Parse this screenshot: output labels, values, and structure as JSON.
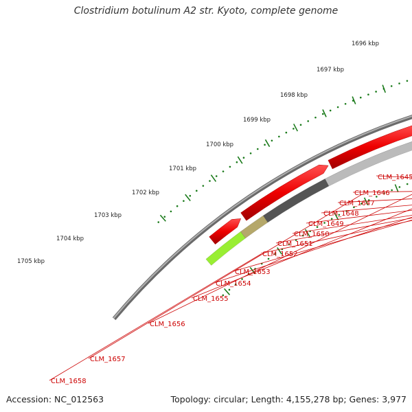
{
  "title": "Clostridium botulinum A2 str. Kyoto, complete genome",
  "footer": {
    "accession": "Accession: NC_012563",
    "topology": "Topology: circular; Length: 4,155,278 bp; Genes: 3,977"
  },
  "scale_labels": [
    "1696 kbp",
    "1697 kbp",
    "1698 kbp",
    "1699 kbp",
    "1700 kbp",
    "1701 kbp",
    "1702 kbp",
    "1703 kbp",
    "1704 kbp",
    "1705 kbp"
  ],
  "gene_labels": [
    "CLM_1645",
    "CLM_1646",
    "CLM_1647",
    "CLM_1648",
    "CLM_1649",
    "CLM_1650",
    "CLM_1651",
    "CLM_1652",
    "CLM_1653",
    "CLM_1654",
    "CLM_1655",
    "CLM_1656",
    "CLM_1657",
    "CLM_1658"
  ],
  "colors": {
    "backbone": "#8c8c8c",
    "gene_red": "#ee0000",
    "scale_dots": "#1a7a1a",
    "label_red": "#cc0000",
    "magenta": "#ee2299",
    "orange": "#ff8800",
    "olive": "#b5a86a",
    "lime": "#99ee33",
    "dark_grey": "#555555",
    "light_grey": "#bbbbbb"
  }
}
